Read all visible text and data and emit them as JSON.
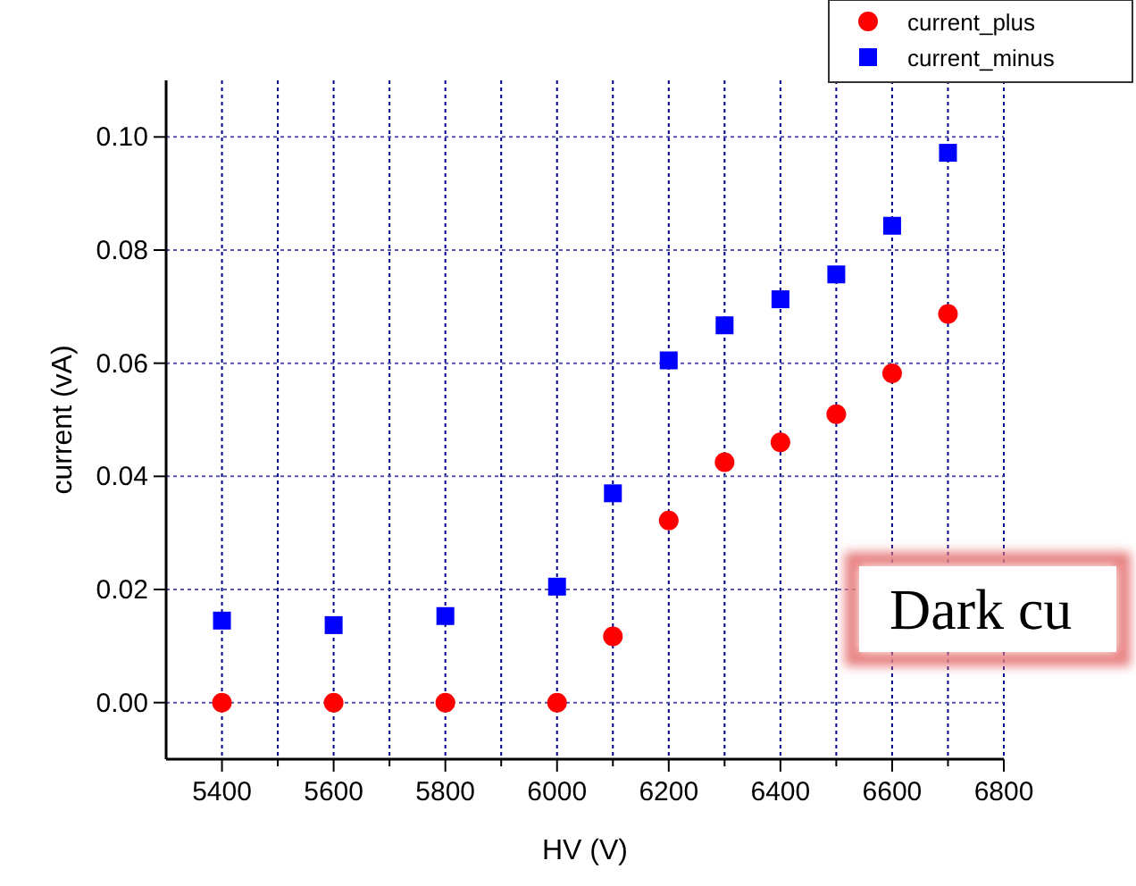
{
  "chart_data": {
    "type": "scatter",
    "xlabel": "HV (V)",
    "ylabel": "current (vA)",
    "x": [
      5400,
      5600,
      5800,
      6000,
      6100,
      6200,
      6300,
      6400,
      6500,
      6600,
      6700
    ],
    "series": [
      {
        "name": "current_plus",
        "color": "#ff0000",
        "marker": "circle",
        "values": [
          0,
          0,
          0,
          0,
          0.0117,
          0.0322,
          0.0425,
          0.046,
          0.051,
          0.0582,
          0.0687
        ]
      },
      {
        "name": "current_minus",
        "color": "#0000ff",
        "marker": "square",
        "values": [
          0.0145,
          0.0137,
          0.0153,
          0.0205,
          0.037,
          0.0605,
          0.0667,
          0.0713,
          0.0757,
          0.0843,
          0.0972
        ]
      }
    ],
    "xlim": [
      5300,
      6800
    ],
    "xticks": [
      5400,
      {
        "value": 5500,
        "label": null
      },
      5600,
      {
        "value": 5700,
        "label": null
      },
      5800,
      {
        "value": 5900,
        "label": null
      },
      6000,
      {
        "value": 6100,
        "label": null
      },
      6200,
      {
        "value": 6300,
        "label": null
      },
      6400,
      {
        "value": 6500,
        "label": null
      },
      6600,
      {
        "value": 6700,
        "label": null
      },
      6800
    ],
    "ylim": [
      -0.01,
      0.11
    ],
    "yticks": [
      {
        "value": 0,
        "label": "0.00"
      },
      {
        "value": 0.02,
        "label": "0.02"
      },
      {
        "value": 0.04,
        "label": "0.04"
      },
      {
        "value": 0.06,
        "label": "0.06"
      },
      {
        "value": 0.08,
        "label": "0.08"
      },
      {
        "value": 0.1,
        "label": "0.10"
      }
    ],
    "grid": true,
    "legend": "top right",
    "annotations": [
      "Dark cu"
    ]
  }
}
